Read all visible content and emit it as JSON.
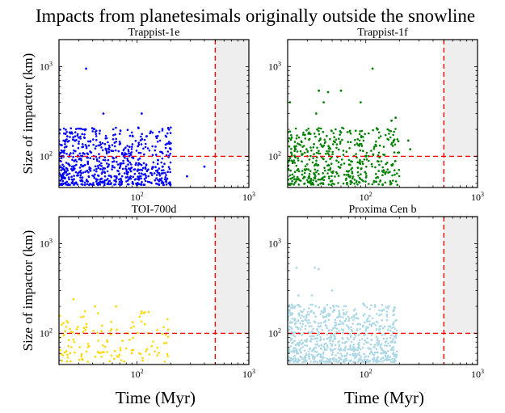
{
  "figure": {
    "suptitle": "Impacts from planetesimals originally outside the snowline"
  },
  "chart_data": [
    {
      "type": "scatter",
      "title": "Trappist-1e",
      "xlabel": "",
      "ylabel": "Size of impactor (km)",
      "xscale": "log",
      "yscale": "log",
      "xlim": [
        20,
        1000
      ],
      "ylim": [
        45,
        2000
      ],
      "xticks": [
        {
          "value": 100,
          "label": "10",
          "exp": "2"
        },
        {
          "value": 1000,
          "label": "10",
          "exp": "3"
        }
      ],
      "yticks": [
        {
          "value": 100,
          "label": "10",
          "exp": "2"
        },
        {
          "value": 1000,
          "label": "10",
          "exp": "3"
        }
      ],
      "color": "#0000ff",
      "reference_lines": {
        "vertical_x": 500,
        "horizontal_y": 100,
        "color": "#ff0000",
        "style": "dashed"
      },
      "shaded_region": {
        "x": [
          500,
          1000
        ],
        "y": [
          100,
          2000
        ],
        "color": "#eeeeee"
      },
      "series": [
        {
          "name": "impacts",
          "n_points_approx": 700,
          "x_range": [
            20,
            400
          ],
          "y_range": [
            48,
            950
          ],
          "highlights": [
            [
              20,
              950
            ],
            [
              35,
              950
            ],
            [
              50,
              300
            ],
            [
              110,
              300
            ],
            [
              180,
              135
            ],
            [
              200,
              140
            ],
            [
              280,
              60
            ],
            [
              400,
              77
            ]
          ]
        }
      ]
    },
    {
      "type": "scatter",
      "title": "Trappist-1f",
      "xlabel": "",
      "ylabel": "",
      "xscale": "log",
      "yscale": "log",
      "xlim": [
        20,
        1000
      ],
      "ylim": [
        45,
        2000
      ],
      "xticks": [
        {
          "value": 100,
          "label": "10",
          "exp": "2"
        },
        {
          "value": 1000,
          "label": "10",
          "exp": "3"
        }
      ],
      "yticks": [
        {
          "value": 100,
          "label": "10",
          "exp": "2"
        },
        {
          "value": 1000,
          "label": "10",
          "exp": "3"
        }
      ],
      "color": "#008000",
      "reference_lines": {
        "vertical_x": 500,
        "horizontal_y": 100,
        "color": "#ff0000",
        "style": "dashed"
      },
      "shaded_region": {
        "x": [
          500,
          1000
        ],
        "y": [
          100,
          2000
        ],
        "color": "#eeeeee"
      },
      "series": [
        {
          "name": "impacts",
          "n_points_approx": 500,
          "x_range": [
            20,
            270
          ],
          "y_range": [
            48,
            950
          ],
          "highlights": [
            [
              115,
              950
            ],
            [
              38,
              540
            ],
            [
              46,
              520
            ],
            [
              60,
              540
            ],
            [
              42,
              400
            ],
            [
              90,
              400
            ],
            [
              21,
              400
            ],
            [
              36,
              300
            ],
            [
              170,
              250
            ],
            [
              185,
              270
            ],
            [
              240,
              150
            ],
            [
              250,
              120
            ]
          ]
        }
      ]
    },
    {
      "type": "scatter",
      "title": "TOI-700d",
      "xlabel": "Time (Myr)",
      "ylabel": "Size of impactor (km)",
      "xscale": "log",
      "yscale": "log",
      "xlim": [
        20,
        1000
      ],
      "ylim": [
        45,
        2000
      ],
      "xticks": [
        {
          "value": 100,
          "label": "10",
          "exp": "2"
        },
        {
          "value": 1000,
          "label": "10",
          "exp": "3"
        }
      ],
      "yticks": [
        {
          "value": 100,
          "label": "10",
          "exp": "2"
        },
        {
          "value": 1000,
          "label": "10",
          "exp": "3"
        }
      ],
      "color": "#ffd700",
      "reference_lines": {
        "vertical_x": 500,
        "horizontal_y": 100,
        "color": "#ff0000",
        "style": "dashed"
      },
      "shaded_region": {
        "x": [
          500,
          1000
        ],
        "y": [
          100,
          2000
        ],
        "color": "#eeeeee"
      },
      "series": [
        {
          "name": "impacts",
          "n_points_approx": 130,
          "x_range": [
            20,
            190
          ],
          "y_range": [
            48,
            240
          ],
          "highlights": [
            [
              27,
              240
            ],
            [
              42,
              200
            ],
            [
              65,
              200
            ],
            [
              110,
              175
            ],
            [
              190,
              110
            ],
            [
              175,
              78
            ],
            [
              135,
              72
            ]
          ]
        }
      ]
    },
    {
      "type": "scatter",
      "title": "Proxima Cen b",
      "xlabel": "Time (Myr)",
      "ylabel": "",
      "xscale": "log",
      "yscale": "log",
      "xlim": [
        20,
        1000
      ],
      "ylim": [
        45,
        2000
      ],
      "xticks": [
        {
          "value": 100,
          "label": "10",
          "exp": "2"
        },
        {
          "value": 1000,
          "label": "10",
          "exp": "3"
        }
      ],
      "yticks": [
        {
          "value": 100,
          "label": "10",
          "exp": "2"
        },
        {
          "value": 1000,
          "label": "10",
          "exp": "3"
        }
      ],
      "color": "#add8e6",
      "reference_lines": {
        "vertical_x": 500,
        "horizontal_y": 100,
        "color": "#ff0000",
        "style": "dashed"
      },
      "shaded_region": {
        "x": [
          500,
          1000
        ],
        "y": [
          100,
          2000
        ],
        "color": "#eeeeee"
      },
      "series": [
        {
          "name": "impacts",
          "n_points_approx": 800,
          "x_range": [
            20,
            190
          ],
          "y_range": [
            48,
            540
          ],
          "highlights": [
            [
              24,
              540
            ],
            [
              35,
              540
            ],
            [
              38,
              520
            ],
            [
              50,
              300
            ],
            [
              25,
              265
            ],
            [
              33,
              265
            ],
            [
              95,
              215
            ],
            [
              140,
              180
            ],
            [
              165,
              120
            ],
            [
              190,
              63
            ],
            [
              180,
              58
            ]
          ]
        }
      ]
    }
  ]
}
